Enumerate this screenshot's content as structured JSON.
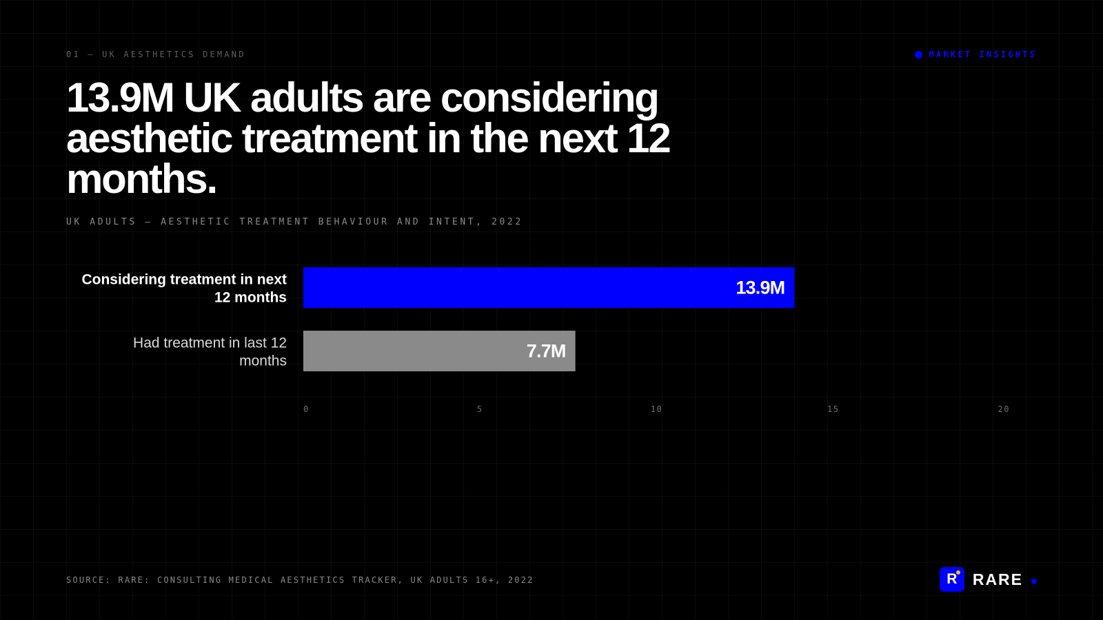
{
  "header": {
    "eyebrow": "01 — UK AESTHETICS DEMAND",
    "insights_label": "MARKET INSIGHTS"
  },
  "headline": "13.9M UK adults are considering aesthetic treatment in the next 12 months.",
  "subtitle": "UK ADULTS — AESTHETIC TREATMENT BEHAVIOUR AND INTENT, 2022",
  "chart_data": {
    "type": "bar",
    "orientation": "horizontal",
    "categories": [
      "Considering treatment in next 12 months",
      "Had treatment in last 12 months"
    ],
    "values": [
      13.9,
      7.7
    ],
    "value_labels": [
      "13.9M",
      "7.7M"
    ],
    "unit": "M",
    "xlim": [
      0,
      20
    ],
    "x_ticks": [
      0,
      5,
      10,
      15,
      20
    ],
    "colors": [
      "#0000ff",
      "#8a8a8a"
    ],
    "label_colors": [
      "#ffffff",
      "#d9d9d9"
    ],
    "label_weights": [
      "bold",
      "normal"
    ],
    "grid": false,
    "legend": "none"
  },
  "footer": {
    "source": "SOURCE: RARE: CONSULTING MEDICAL AESTHETICS TRACKER, UK ADULTS 16+, 2022",
    "brand_letter": "R",
    "brand_name": "RARE"
  },
  "colors": {
    "background": "#000000",
    "accent": "#0000ff",
    "muted": "#8a8a8a"
  }
}
